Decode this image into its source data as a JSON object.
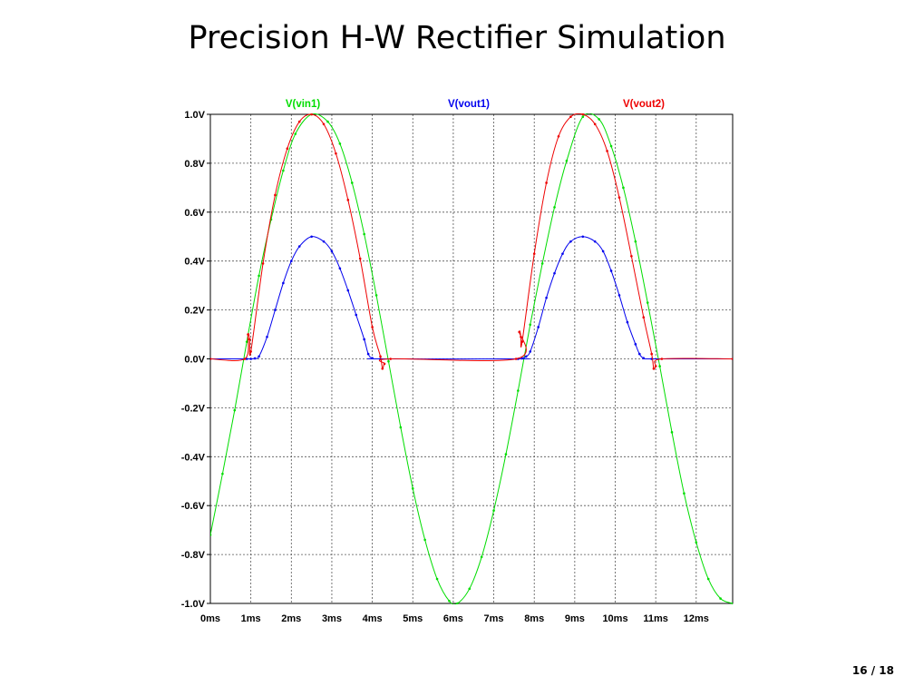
{
  "slide": {
    "title": "Precision H-W Rectifier Simulation",
    "page_number": "16 / 18"
  },
  "chart_data": {
    "type": "line",
    "title": "",
    "xlabel": "",
    "ylabel": "",
    "grid": true,
    "grid_style": "dotted",
    "legend_position": "top",
    "xlim": [
      0,
      12.9
    ],
    "ylim": [
      -1.0,
      1.0
    ],
    "x_unit": "ms",
    "x_ticks": [
      0,
      1,
      2,
      3,
      4,
      5,
      6,
      7,
      8,
      9,
      10,
      11,
      12
    ],
    "x_tick_labels": [
      "0ms",
      "1ms",
      "2ms",
      "3ms",
      "4ms",
      "5ms",
      "6ms",
      "7ms",
      "8ms",
      "9ms",
      "10ms",
      "11ms",
      "12ms"
    ],
    "y_ticks": [
      1.0,
      0.8,
      0.6,
      0.4,
      0.2,
      0.0,
      -0.2,
      -0.4,
      -0.6,
      -0.8,
      -1.0
    ],
    "y_tick_labels": [
      "1.0V",
      "0.8V",
      "0.6V",
      "0.4V",
      "0.2V",
      "0.0V",
      "-0.2V",
      "-0.4V",
      "-0.6V",
      "-0.8V",
      "-1.0V"
    ],
    "series": [
      {
        "name": "V(vin1)",
        "color": "#00dd00",
        "x": [
          0,
          0.3,
          0.6,
          0.9,
          1.2,
          1.5,
          1.8,
          2.1,
          2.5,
          2.9,
          3.2,
          3.5,
          3.8,
          4.1,
          4.4,
          4.7,
          5.0,
          5.3,
          5.6,
          5.9,
          6.1,
          6.4,
          6.7,
          7.0,
          7.3,
          7.6,
          7.9,
          8.2,
          8.5,
          8.8,
          9.2,
          9.6,
          9.9,
          10.2,
          10.5,
          10.8,
          11.1,
          11.4,
          11.7,
          12.0,
          12.3,
          12.6,
          12.9
        ],
        "values": [
          -0.72,
          -0.47,
          -0.21,
          0.07,
          0.34,
          0.57,
          0.77,
          0.92,
          1.0,
          0.97,
          0.88,
          0.72,
          0.51,
          0.26,
          -0.01,
          -0.28,
          -0.53,
          -0.74,
          -0.9,
          -0.99,
          -1.0,
          -0.94,
          -0.81,
          -0.62,
          -0.39,
          -0.13,
          0.14,
          0.39,
          0.62,
          0.81,
          0.99,
          0.98,
          0.87,
          0.7,
          0.48,
          0.23,
          -0.03,
          -0.3,
          -0.55,
          -0.75,
          -0.9,
          -0.98,
          -1.0
        ]
      },
      {
        "name": "V(vout1)",
        "color": "#0000ee",
        "x": [
          0,
          0.9,
          1.0,
          1.1,
          1.2,
          1.4,
          1.6,
          1.8,
          2.0,
          2.2,
          2.5,
          2.8,
          3.0,
          3.2,
          3.4,
          3.6,
          3.8,
          3.9,
          4.0,
          4.2,
          7.6,
          7.7,
          7.8,
          7.9,
          8.1,
          8.3,
          8.5,
          8.7,
          8.9,
          9.2,
          9.5,
          9.7,
          9.9,
          10.1,
          10.3,
          10.5,
          10.6,
          10.7,
          10.9,
          12.9
        ],
        "values": [
          0,
          0,
          0,
          0.002,
          0.01,
          0.09,
          0.2,
          0.31,
          0.4,
          0.46,
          0.5,
          0.48,
          0.44,
          0.37,
          0.28,
          0.18,
          0.08,
          0.02,
          0.003,
          0,
          0,
          0.002,
          0.01,
          0.03,
          0.13,
          0.25,
          0.35,
          0.43,
          0.48,
          0.5,
          0.48,
          0.44,
          0.36,
          0.26,
          0.15,
          0.06,
          0.02,
          0.003,
          0,
          0
        ]
      },
      {
        "name": "V(vout2)",
        "color": "#ee0000",
        "x": [
          0,
          0.85,
          0.93,
          0.97,
          1.0,
          1.3,
          1.6,
          1.9,
          2.2,
          2.5,
          2.8,
          3.1,
          3.4,
          3.7,
          4.0,
          4.2,
          4.25,
          4.3,
          4.45,
          7.55,
          7.63,
          7.67,
          7.7,
          8.0,
          8.3,
          8.6,
          8.9,
          9.2,
          9.5,
          9.8,
          10.1,
          10.4,
          10.7,
          10.9,
          10.95,
          11.0,
          11.15,
          12.9
        ],
        "values": [
          0,
          0,
          0.1,
          0.08,
          0.03,
          0.39,
          0.67,
          0.86,
          0.97,
          1.0,
          0.96,
          0.84,
          0.65,
          0.41,
          0.13,
          0.01,
          -0.04,
          -0.02,
          0,
          0,
          0.11,
          0.09,
          0.07,
          0.43,
          0.72,
          0.91,
          0.99,
          1.0,
          0.96,
          0.85,
          0.66,
          0.42,
          0.17,
          0.02,
          -0.04,
          -0.03,
          0,
          0
        ]
      }
    ]
  }
}
